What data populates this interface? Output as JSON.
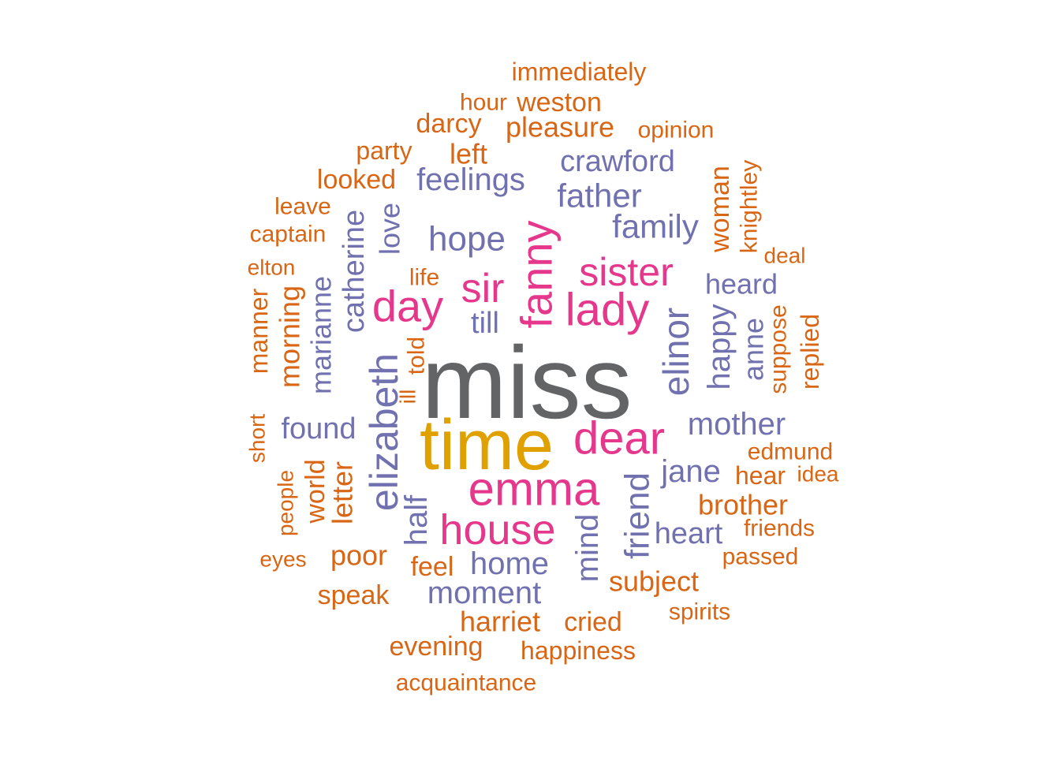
{
  "palette": {
    "gray": "#636466",
    "gold": "#E0A000",
    "pink": "#E5388C",
    "purple": "#7171B0",
    "orange": "#D86614"
  },
  "words": [
    {
      "text": "miss",
      "color": "gray"
    },
    {
      "text": "time",
      "color": "gold"
    },
    {
      "text": "dear",
      "color": "pink"
    },
    {
      "text": "emma",
      "color": "pink"
    },
    {
      "text": "house",
      "color": "pink"
    },
    {
      "text": "lady",
      "color": "pink"
    },
    {
      "text": "sister",
      "color": "pink"
    },
    {
      "text": "sir",
      "color": "pink"
    },
    {
      "text": "day",
      "color": "pink"
    },
    {
      "text": "fanny",
      "color": "pink"
    },
    {
      "text": "elizabeth",
      "color": "purple"
    },
    {
      "text": "elinor",
      "color": "purple"
    },
    {
      "text": "mother",
      "color": "purple"
    },
    {
      "text": "hope",
      "color": "purple"
    },
    {
      "text": "family",
      "color": "purple"
    },
    {
      "text": "father",
      "color": "purple"
    },
    {
      "text": "feelings",
      "color": "purple"
    },
    {
      "text": "crawford",
      "color": "purple"
    },
    {
      "text": "jane",
      "color": "purple"
    },
    {
      "text": "heart",
      "color": "purple"
    },
    {
      "text": "home",
      "color": "purple"
    },
    {
      "text": "moment",
      "color": "purple"
    },
    {
      "text": "mind",
      "color": "purple"
    },
    {
      "text": "friend",
      "color": "purple"
    },
    {
      "text": "found",
      "color": "purple"
    },
    {
      "text": "heard",
      "color": "purple"
    },
    {
      "text": "happy",
      "color": "purple"
    },
    {
      "text": "anne",
      "color": "purple"
    },
    {
      "text": "marianne",
      "color": "purple"
    },
    {
      "text": "catherine",
      "color": "purple"
    },
    {
      "text": "love",
      "color": "purple"
    },
    {
      "text": "till",
      "color": "purple"
    },
    {
      "text": "half",
      "color": "purple"
    },
    {
      "text": "immediately",
      "color": "orange"
    },
    {
      "text": "hour",
      "color": "orange"
    },
    {
      "text": "weston",
      "color": "orange"
    },
    {
      "text": "darcy",
      "color": "orange"
    },
    {
      "text": "pleasure",
      "color": "orange"
    },
    {
      "text": "opinion",
      "color": "orange"
    },
    {
      "text": "party",
      "color": "orange"
    },
    {
      "text": "left",
      "color": "orange"
    },
    {
      "text": "looked",
      "color": "orange"
    },
    {
      "text": "leave",
      "color": "orange"
    },
    {
      "text": "captain",
      "color": "orange"
    },
    {
      "text": "elton",
      "color": "orange"
    },
    {
      "text": "life",
      "color": "orange"
    },
    {
      "text": "woman",
      "color": "orange"
    },
    {
      "text": "knightley",
      "color": "orange"
    },
    {
      "text": "deal",
      "color": "orange"
    },
    {
      "text": "manner",
      "color": "orange"
    },
    {
      "text": "morning",
      "color": "orange"
    },
    {
      "text": "told",
      "color": "orange"
    },
    {
      "text": "ill",
      "color": "orange"
    },
    {
      "text": "suppose",
      "color": "orange"
    },
    {
      "text": "replied",
      "color": "orange"
    },
    {
      "text": "short",
      "color": "orange"
    },
    {
      "text": "edmund",
      "color": "orange"
    },
    {
      "text": "hear",
      "color": "orange"
    },
    {
      "text": "idea",
      "color": "orange"
    },
    {
      "text": "people",
      "color": "orange"
    },
    {
      "text": "world",
      "color": "orange"
    },
    {
      "text": "letter",
      "color": "orange"
    },
    {
      "text": "brother",
      "color": "orange"
    },
    {
      "text": "friends",
      "color": "orange"
    },
    {
      "text": "eyes",
      "color": "orange"
    },
    {
      "text": "poor",
      "color": "orange"
    },
    {
      "text": "feel",
      "color": "orange"
    },
    {
      "text": "passed",
      "color": "orange"
    },
    {
      "text": "speak",
      "color": "orange"
    },
    {
      "text": "subject",
      "color": "orange"
    },
    {
      "text": "spirits",
      "color": "orange"
    },
    {
      "text": "harriet",
      "color": "orange"
    },
    {
      "text": "cried",
      "color": "orange"
    },
    {
      "text": "evening",
      "color": "orange"
    },
    {
      "text": "happiness",
      "color": "orange"
    },
    {
      "text": "acquaintance",
      "color": "orange"
    }
  ]
}
